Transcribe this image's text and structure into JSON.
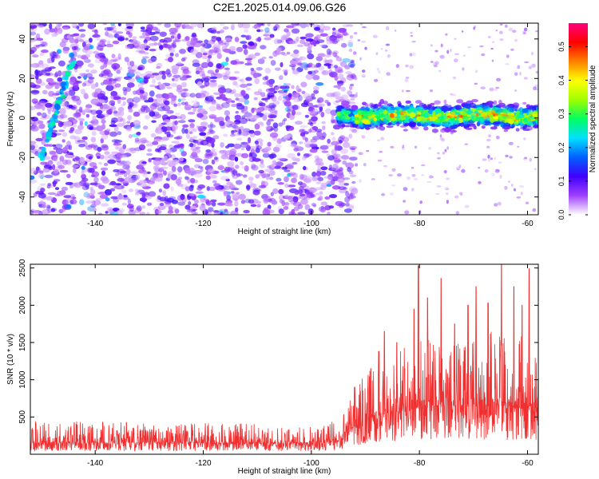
{
  "figure": {
    "title": "C2E1.2025.014.09.06.G26"
  },
  "chart_data": [
    {
      "type": "heatmap",
      "title": "C2E1.2025.014.09.06.G26",
      "xlabel": "Height of straight line (km)",
      "ylabel": "Frequency (Hz)",
      "xlim": [
        -152,
        -58
      ],
      "ylim": [
        -49,
        48
      ],
      "x_ticks": [
        -140,
        -120,
        -100,
        -80,
        -60
      ],
      "y_ticks": [
        -40,
        -20,
        0,
        20,
        40
      ],
      "colorbar": {
        "label": "Normalized spectral amplitude",
        "range": [
          0,
          0.57
        ],
        "ticks": [
          0.0,
          0.1,
          0.2,
          0.3,
          0.4,
          0.5
        ],
        "colors": [
          "#ffffff",
          "#a040ff",
          "#4000ff",
          "#0060ff",
          "#00e0ff",
          "#00ff60",
          "#a0ff00",
          "#ffff00",
          "#ff8000",
          "#ff0000",
          "#ff0080"
        ]
      },
      "features": {
        "noise_region_x": [
          -152,
          -92
        ],
        "band_region_x": [
          -95,
          -58
        ],
        "band_center_freq_hz": 1,
        "band_halfwidth_hz": 6,
        "diagonal_track": {
          "x": [
            -150,
            -144
          ],
          "freq_hz": [
            -20,
            30
          ]
        }
      }
    },
    {
      "type": "line",
      "xlabel": "Height of straight line (km)",
      "ylabel": "SNR (10 * v/v)",
      "xlim": [
        -152,
        -58
      ],
      "ylim": [
        0,
        2550
      ],
      "x_ticks": [
        -140,
        -120,
        -100,
        -80,
        -60
      ],
      "y_ticks": [
        500,
        1000,
        1500,
        2000,
        2500
      ],
      "series": [
        {
          "color": "#f03030",
          "baseline_x": [
            -152,
            -100,
            -95,
            -93,
            -90,
            -85,
            -80,
            -75,
            -70,
            -65,
            -60,
            -58
          ],
          "baseline_y": [
            150,
            140,
            170,
            320,
            480,
            560,
            620,
            640,
            640,
            650,
            600,
            550
          ],
          "envelope_y": [
            450,
            400,
            450,
            700,
            1100,
            1300,
            1600,
            1500,
            1550,
            1700,
            1600,
            1300
          ]
        }
      ],
      "peaks": [
        {
          "x": -92,
          "y": 900
        },
        {
          "x": -89,
          "y": 1150
        },
        {
          "x": -87.5,
          "y": 1380
        },
        {
          "x": -86.5,
          "y": 1650
        },
        {
          "x": -84.2,
          "y": 1500
        },
        {
          "x": -81,
          "y": 1950
        },
        {
          "x": -80.2,
          "y": 2530
        },
        {
          "x": -78.5,
          "y": 2100
        },
        {
          "x": -76,
          "y": 2360
        },
        {
          "x": -73.5,
          "y": 1750
        },
        {
          "x": -71,
          "y": 2000
        },
        {
          "x": -69.5,
          "y": 2250
        },
        {
          "x": -67.3,
          "y": 2030
        },
        {
          "x": -64.8,
          "y": 2550
        },
        {
          "x": -62.5,
          "y": 2250
        },
        {
          "x": -61,
          "y": 2000
        },
        {
          "x": -59.7,
          "y": 2490
        }
      ]
    }
  ]
}
